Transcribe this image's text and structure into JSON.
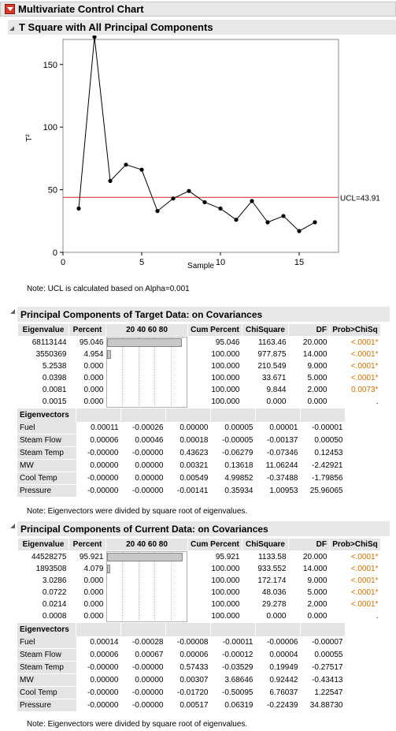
{
  "report": {
    "title": "Multivariate Control Chart"
  },
  "chart_section": {
    "title": "T Square with All Principal Components"
  },
  "chart_data": {
    "type": "line",
    "xlabel": "Sample",
    "ylabel": "T²",
    "x": [
      1,
      2,
      3,
      4,
      5,
      6,
      7,
      8,
      9,
      10,
      11,
      12,
      13,
      14,
      15,
      16
    ],
    "values": [
      35,
      172,
      57,
      70,
      66,
      33,
      43,
      49,
      40,
      35,
      26,
      41,
      24,
      29,
      17,
      24
    ],
    "xlim": [
      0,
      17.5
    ],
    "ylim": [
      0,
      170
    ],
    "xticks": [
      "0",
      "5",
      "10",
      "15"
    ],
    "yticks": [
      "0",
      "50",
      "100",
      "150"
    ],
    "ucl_value": 43.91,
    "ucl_label": "UCL=43.91"
  },
  "ucl_note": "Note: UCL is calculated based on Alpha=0.001",
  "target": {
    "title": "Principal Components of Target Data: on Covariances",
    "headers": {
      "eigenvalue": "Eigenvalue",
      "percent": "Percent",
      "scale": "20  40  60  80",
      "cum": "Cum Percent",
      "chisq": "ChiSquare",
      "df": "DF",
      "prob": "Prob>ChiSq"
    },
    "rows": [
      {
        "eig": "68113144",
        "pct": "95.046",
        "frac": 0.95046,
        "cum": "95.046",
        "chi": "1163.46",
        "df": "20.000",
        "prob": "<.0001*"
      },
      {
        "eig": "3550369",
        "pct": "4.954",
        "frac": 0.04954,
        "cum": "100.000",
        "chi": "977.875",
        "df": "14.000",
        "prob": "<.0001*"
      },
      {
        "eig": "5.2538",
        "pct": "0.000",
        "frac": 0,
        "cum": "100.000",
        "chi": "210.549",
        "df": "9.000",
        "prob": "<.0001*"
      },
      {
        "eig": "0.0398",
        "pct": "0.000",
        "frac": 0,
        "cum": "100.000",
        "chi": "33.671",
        "df": "5.000",
        "prob": "<.0001*"
      },
      {
        "eig": "0.0081",
        "pct": "0.000",
        "frac": 0,
        "cum": "100.000",
        "chi": "9.844",
        "df": "2.000",
        "prob": "0.0073*"
      },
      {
        "eig": "0.0015",
        "pct": "0.000",
        "frac": 0,
        "cum": "100.000",
        "chi": "0.000",
        "df": "0.000",
        "prob": "."
      }
    ],
    "eigenvectors_label": "Eigenvectors",
    "eigenvectors": [
      {
        "name": "Fuel",
        "v": [
          "0.00011",
          "-0.00026",
          "0.00000",
          "0.00005",
          "0.00001",
          "-0.00001"
        ]
      },
      {
        "name": "Steam Flow",
        "v": [
          "0.00006",
          "0.00046",
          "0.00018",
          "-0.00005",
          "-0.00137",
          "0.00050"
        ]
      },
      {
        "name": "Steam Temp",
        "v": [
          "-0.00000",
          "-0.00000",
          "0.43623",
          "-0.06279",
          "-0.07346",
          "0.12453"
        ]
      },
      {
        "name": "MW",
        "v": [
          "0.00000",
          "0.00000",
          "0.00321",
          "0.13618",
          "11.06244",
          "-2.42921"
        ]
      },
      {
        "name": "Cool Temp",
        "v": [
          "-0.00000",
          "0.00000",
          "0.00549",
          "4.99852",
          "-0.37488",
          "-1.79856"
        ]
      },
      {
        "name": "Pressure",
        "v": [
          "-0.00000",
          "-0.00000",
          "-0.00141",
          "0.35934",
          "1.00953",
          "25.96065"
        ]
      }
    ],
    "note": "Note: Eigenvectors were divided by square root of eigenvalues."
  },
  "current": {
    "title": "Principal Components of Current Data: on Covariances",
    "headers": {
      "eigenvalue": "Eigenvalue",
      "percent": "Percent",
      "scale": "20  40  60  80",
      "cum": "Cum Percent",
      "chisq": "ChiSquare",
      "df": "DF",
      "prob": "Prob>ChiSq"
    },
    "rows": [
      {
        "eig": "44528275",
        "pct": "95.921",
        "frac": 0.95921,
        "cum": "95.921",
        "chi": "1133.58",
        "df": "20.000",
        "prob": "<.0001*"
      },
      {
        "eig": "1893508",
        "pct": "4.079",
        "frac": 0.04079,
        "cum": "100.000",
        "chi": "933.552",
        "df": "14.000",
        "prob": "<.0001*"
      },
      {
        "eig": "3.0286",
        "pct": "0.000",
        "frac": 0,
        "cum": "100.000",
        "chi": "172.174",
        "df": "9.000",
        "prob": "<.0001*"
      },
      {
        "eig": "0.0722",
        "pct": "0.000",
        "frac": 0,
        "cum": "100.000",
        "chi": "48.036",
        "df": "5.000",
        "prob": "<.0001*"
      },
      {
        "eig": "0.0214",
        "pct": "0.000",
        "frac": 0,
        "cum": "100.000",
        "chi": "29.278",
        "df": "2.000",
        "prob": "<.0001*"
      },
      {
        "eig": "0.0008",
        "pct": "0.000",
        "frac": 0,
        "cum": "100.000",
        "chi": "0.000",
        "df": "0.000",
        "prob": "."
      }
    ],
    "eigenvectors_label": "Eigenvectors",
    "eigenvectors": [
      {
        "name": "Fuel",
        "v": [
          "0.00014",
          "-0.00028",
          "-0.00008",
          "-0.00011",
          "-0.00006",
          "-0.00007"
        ]
      },
      {
        "name": "Steam Flow",
        "v": [
          "0.00006",
          "0.00067",
          "0.00006",
          "-0.00012",
          "0.00004",
          "0.00055"
        ]
      },
      {
        "name": "Steam Temp",
        "v": [
          "-0.00000",
          "-0.00000",
          "0.57433",
          "-0.03529",
          "0.19949",
          "-0.27517"
        ]
      },
      {
        "name": "MW",
        "v": [
          "0.00000",
          "0.00000",
          "0.00307",
          "3.68646",
          "0.92442",
          "-0.43413"
        ]
      },
      {
        "name": "Cool Temp",
        "v": [
          "-0.00000",
          "-0.00000",
          "-0.01720",
          "-0.50095",
          "6.76037",
          "1.22547"
        ]
      },
      {
        "name": "Pressure",
        "v": [
          "-0.00000",
          "-0.00000",
          "0.00517",
          "0.06319",
          "-0.22439",
          "34.88730"
        ]
      }
    ],
    "note": "Note: Eigenvectors were divided by square root of eigenvalues."
  },
  "colors": {
    "ucl_line": "#d62020",
    "significant": "#d07000",
    "header_bg": "#e8e8e8"
  }
}
